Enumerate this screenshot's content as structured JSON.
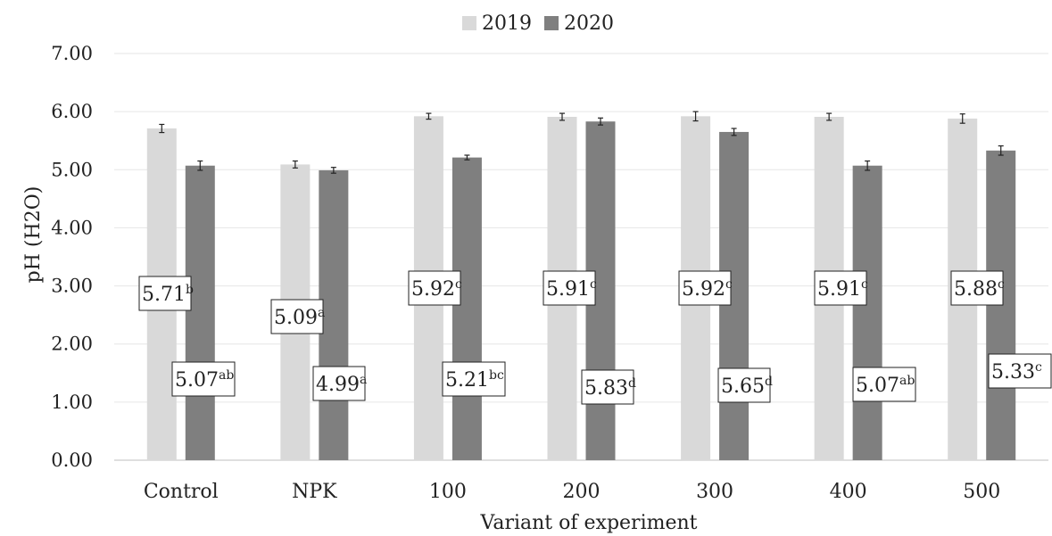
{
  "chart_data": {
    "type": "bar",
    "categories": [
      "Control",
      "NPK",
      "100",
      "200",
      "300",
      "400",
      "500"
    ],
    "series": [
      {
        "name": "2019",
        "color": "#d9d9d9",
        "values": [
          5.71,
          5.09,
          5.92,
          5.91,
          5.92,
          5.91,
          5.88
        ],
        "errors": [
          0.07,
          0.06,
          0.05,
          0.06,
          0.08,
          0.06,
          0.08
        ],
        "labels": [
          "5.71",
          "5.09",
          "5.92",
          "5.91",
          "5.92",
          "5.91",
          "5.88"
        ],
        "letters": [
          "b",
          "a",
          "c",
          "c",
          "c",
          "c",
          "c"
        ]
      },
      {
        "name": "2020",
        "color": "#7f7f7f",
        "values": [
          5.07,
          4.99,
          5.21,
          5.83,
          5.65,
          5.07,
          5.33
        ],
        "errors": [
          0.08,
          0.05,
          0.04,
          0.06,
          0.06,
          0.08,
          0.08
        ],
        "labels": [
          "5.07",
          "4.99",
          "5.21",
          "5.83",
          "5.65",
          "5.07",
          "5.33"
        ],
        "letters": [
          "ab",
          "a",
          "bc",
          "d",
          "d",
          "ab",
          "c"
        ]
      }
    ],
    "xlabel": "Variant of experiment",
    "ylabel": "pH (H2O)",
    "ylim": [
      0,
      7
    ],
    "yticks": [
      "0.00",
      "1.00",
      "2.00",
      "3.00",
      "4.00",
      "5.00",
      "6.00",
      "7.00"
    ],
    "grid": true,
    "legend_position": "top-center"
  }
}
